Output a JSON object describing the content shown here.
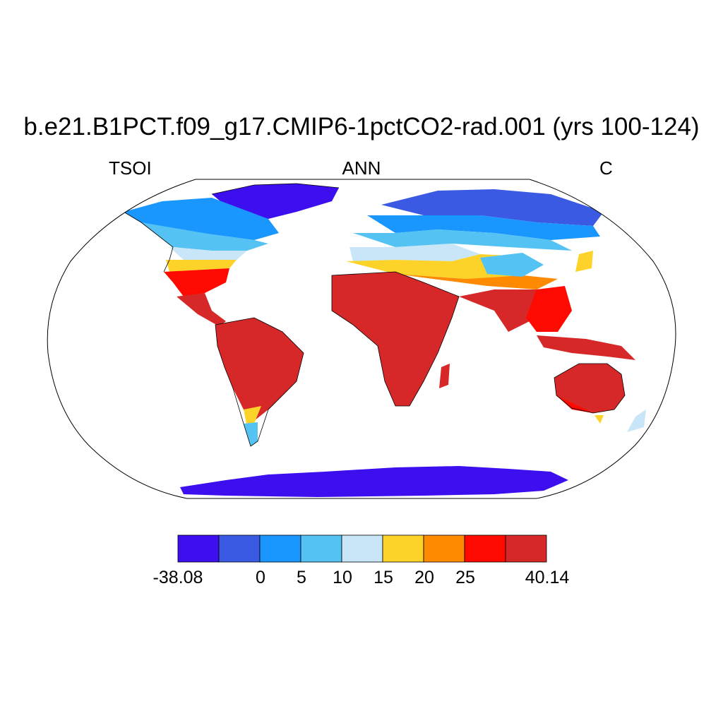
{
  "title": "b.e21.B1PCT.f09_g17.CMIP6-1pctCO2-rad.001 (yrs 100-124)",
  "subtitle": {
    "left": "TSOI",
    "center": "ANN",
    "right": "C"
  },
  "colorbar": {
    "colors": [
      "#3d0fef",
      "#3b5ae3",
      "#1a96ff",
      "#54c3f4",
      "#c8e6f7",
      "#fdd32a",
      "#fe8a02",
      "#ff0a00",
      "#d62828"
    ],
    "labels": [
      "-38.08",
      "0",
      "5",
      "10",
      "15",
      "20",
      "25",
      "40.14"
    ]
  },
  "map": {
    "projection": "robinson",
    "ocean_color": "#ffffff",
    "coastline_color": "#000000"
  }
}
